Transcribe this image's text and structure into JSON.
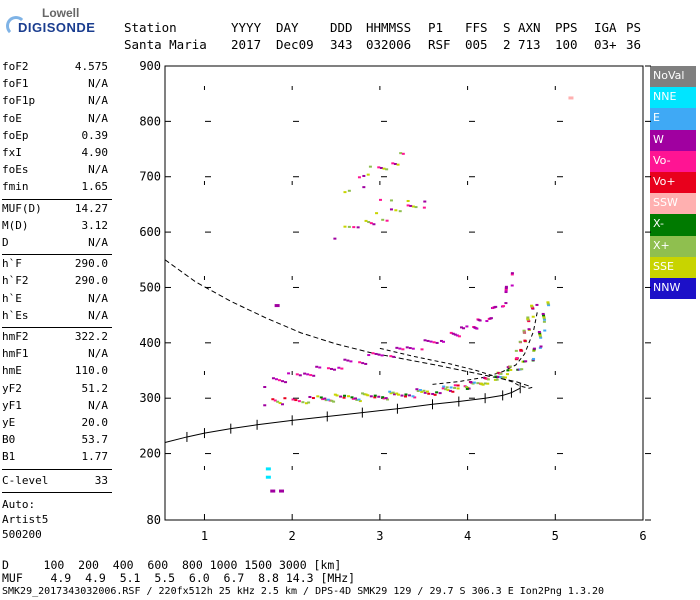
{
  "logo": {
    "top": "Lowell",
    "main": "DIGISONDE"
  },
  "header": {
    "cols": [
      {
        "label": "Station",
        "value": "Santa Maria"
      },
      {
        "label": "YYYY",
        "value": "2017"
      },
      {
        "label": "DAY",
        "value": "Dec09"
      },
      {
        "label": "DDD",
        "value": "343"
      },
      {
        "label": "HHMMSS",
        "value": "032006"
      },
      {
        "label": "P1",
        "value": "RSF"
      },
      {
        "label": "FFS",
        "value": "005"
      },
      {
        "label": "S",
        "value": "2"
      },
      {
        "label": "AXN",
        "value": "713"
      },
      {
        "label": "PPS",
        "value": "100"
      },
      {
        "label": "IGA",
        "value": "03+"
      },
      {
        "label": "PS",
        "value": "36"
      }
    ]
  },
  "params_group1": [
    {
      "label": "foF2",
      "value": "4.575"
    },
    {
      "label": "foF1",
      "value": "N/A"
    },
    {
      "label": "foF1p",
      "value": "N/A"
    },
    {
      "label": "foE",
      "value": "N/A"
    },
    {
      "label": "foEp",
      "value": "0.39"
    },
    {
      "label": "fxI",
      "value": "4.90"
    },
    {
      "label": "foEs",
      "value": "N/A"
    },
    {
      "label": "fmin",
      "value": "1.65"
    }
  ],
  "params_group2": [
    {
      "label": "MUF(D)",
      "value": "14.27"
    },
    {
      "label": "M(D)",
      "value": "3.12"
    },
    {
      "label": "D",
      "value": "N/A"
    }
  ],
  "params_group3": [
    {
      "label": "h`F",
      "value": "290.0"
    },
    {
      "label": "h`F2",
      "value": "290.0"
    },
    {
      "label": "h`E",
      "value": "N/A"
    },
    {
      "label": "h`Es",
      "value": "N/A"
    }
  ],
  "params_group4": [
    {
      "label": "hmF2",
      "value": "322.2"
    },
    {
      "label": "hmF1",
      "value": "N/A"
    },
    {
      "label": "hmE",
      "value": "110.0"
    },
    {
      "label": "yF2",
      "value": "51.2"
    },
    {
      "label": "yF1",
      "value": "N/A"
    },
    {
      "label": "yE",
      "value": "20.0"
    },
    {
      "label": "B0",
      "value": "53.7"
    },
    {
      "label": "B1",
      "value": "1.77"
    }
  ],
  "clevel": {
    "label": "C-level",
    "value": "33"
  },
  "auto": [
    "Auto:",
    "Artist5",
    "500200"
  ],
  "legend": [
    {
      "label": "NoVal",
      "color": "#7f7f7f"
    },
    {
      "label": "NNE",
      "color": "#00e5ff"
    },
    {
      "label": "E",
      "color": "#3fa9f5"
    },
    {
      "label": "W",
      "color": "#a000a0"
    },
    {
      "label": "Vo-",
      "color": "#ff1493"
    },
    {
      "label": "Vo+",
      "color": "#e8001c"
    },
    {
      "label": "SSW",
      "color": "#ffb0b0"
    },
    {
      "label": "X-",
      "color": "#007a00"
    },
    {
      "label": "X+",
      "color": "#8fbf4f"
    },
    {
      "label": "SSE",
      "color": "#c8d400"
    },
    {
      "label": "NNW",
      "color": "#1c10c8"
    }
  ],
  "bottom": {
    "d_row": "D     100  200  400  600  800 1000 1500 3000 [km]",
    "muf_row": "MUF    4.9  4.9  5.1  5.5  6.0  6.7  8.8 14.3 [MHz]",
    "footer": "SMK29_2017343032006.RSF / 220fx512h 25 kHz 2.5 km / DPS-4D SMK29 129 / 29.7 S 306.3 E Ion2Png 1.3.20"
  },
  "chart_data": {
    "type": "scatter",
    "title": "",
    "xlabel": "",
    "ylabel": "",
    "xlim": [
      0.55,
      6.0
    ],
    "ylim": [
      80,
      900
    ],
    "xticks": [
      1,
      2,
      3,
      4,
      5,
      6
    ],
    "yticks": [
      80,
      200,
      300,
      400,
      500,
      600,
      700,
      800,
      900
    ],
    "o_trace": [
      [
        1.7,
        295
      ],
      [
        2.0,
        296
      ],
      [
        2.4,
        300
      ],
      [
        2.8,
        303
      ],
      [
        3.2,
        307
      ],
      [
        3.6,
        313
      ],
      [
        3.9,
        320
      ],
      [
        4.1,
        328
      ],
      [
        4.3,
        340
      ],
      [
        4.45,
        355
      ],
      [
        4.55,
        375
      ],
      [
        4.6,
        395
      ],
      [
        4.65,
        420
      ],
      [
        4.7,
        450
      ],
      [
        4.75,
        480
      ]
    ],
    "x_trace": [
      [
        2.2,
        300
      ],
      [
        2.6,
        303
      ],
      [
        3.0,
        306
      ],
      [
        3.4,
        312
      ],
      [
        3.8,
        320
      ],
      [
        4.2,
        332
      ],
      [
        4.5,
        348
      ],
      [
        4.7,
        370
      ],
      [
        4.8,
        400
      ],
      [
        4.85,
        440
      ],
      [
        4.9,
        480
      ]
    ],
    "second_hop": [
      [
        1.7,
        330
      ],
      [
        2.1,
        343
      ],
      [
        2.5,
        360
      ],
      [
        2.9,
        375
      ],
      [
        3.3,
        392
      ],
      [
        3.7,
        410
      ],
      [
        4.0,
        425
      ],
      [
        4.2,
        445
      ],
      [
        4.4,
        480
      ],
      [
        4.5,
        530
      ]
    ],
    "high_echo": [
      [
        2.5,
        600
      ],
      [
        2.8,
        618
      ],
      [
        3.0,
        628
      ],
      [
        3.3,
        640
      ],
      [
        3.5,
        655
      ],
      [
        2.6,
        680
      ],
      [
        2.9,
        712
      ],
      [
        3.1,
        726
      ],
      [
        3.3,
        740
      ]
    ],
    "profile_curve": [
      [
        0.55,
        220
      ],
      [
        0.8,
        230
      ],
      [
        1.0,
        237
      ],
      [
        1.3,
        245
      ],
      [
        1.6,
        252
      ],
      [
        2.0,
        260
      ],
      [
        2.4,
        267
      ],
      [
        2.8,
        274
      ],
      [
        3.2,
        281
      ],
      [
        3.6,
        289
      ],
      [
        3.9,
        294
      ],
      [
        4.2,
        300
      ],
      [
        4.4,
        305
      ],
      [
        4.5,
        310
      ],
      [
        4.6,
        318
      ]
    ],
    "dashed_curve": [
      [
        0.55,
        550
      ],
      [
        0.9,
        510
      ],
      [
        1.3,
        475
      ],
      [
        1.7,
        445
      ],
      [
        2.1,
        418
      ],
      [
        2.5,
        398
      ],
      [
        2.9,
        382
      ],
      [
        3.3,
        370
      ],
      [
        3.7,
        358
      ],
      [
        4.0,
        348
      ],
      [
        4.3,
        338
      ],
      [
        4.55,
        330
      ],
      [
        4.7,
        322
      ]
    ],
    "dashed_curve2": [
      [
        3.0,
        390
      ],
      [
        3.4,
        375
      ],
      [
        3.8,
        362
      ],
      [
        4.1,
        350
      ],
      [
        4.3,
        340
      ],
      [
        4.5,
        330
      ],
      [
        4.6,
        322
      ],
      [
        4.7,
        318
      ],
      [
        4.75,
        320
      ]
    ],
    "dashed_curve3": [
      [
        3.6,
        325
      ],
      [
        3.9,
        330
      ],
      [
        4.2,
        338
      ],
      [
        4.4,
        348
      ],
      [
        4.55,
        360
      ],
      [
        4.65,
        380
      ],
      [
        4.75,
        420
      ],
      [
        4.8,
        460
      ]
    ],
    "isolated_points": [
      [
        1.7,
        175
      ],
      [
        1.7,
        160
      ],
      [
        1.75,
        135
      ],
      [
        1.85,
        135
      ],
      [
        5.15,
        845
      ],
      [
        1.8,
        470
      ]
    ]
  }
}
